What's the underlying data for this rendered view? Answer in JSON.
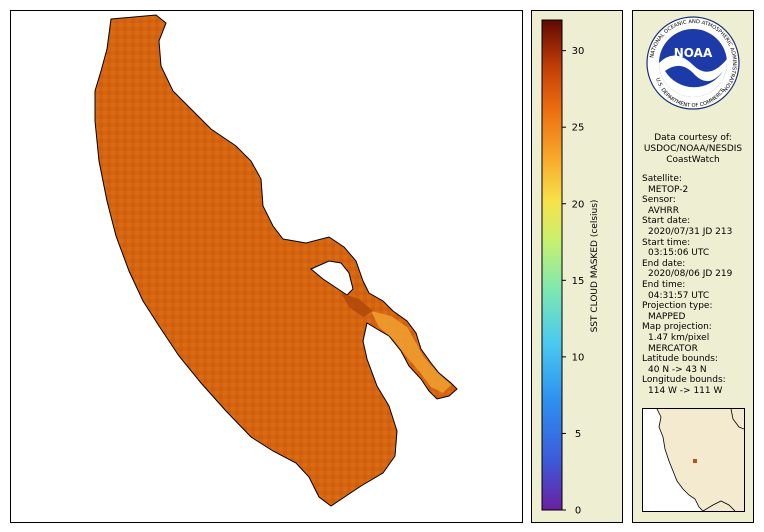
{
  "map": {
    "fill_color": "#d9680e",
    "highlight_color": "#f4b33a",
    "outline_color": "#000000"
  },
  "legend": {
    "title": "SST CLOUD MASKED (celsius)",
    "ticks": [
      "30",
      "25",
      "20",
      "15",
      "10",
      "5",
      "0"
    ],
    "min": 0,
    "max": 32,
    "colormap": [
      "#6a1fa0",
      "#3d5ad8",
      "#2e8ef0",
      "#49c9f0",
      "#7fe8b0",
      "#c8f070",
      "#f8e24a",
      "#f8a72a",
      "#ea6c10",
      "#c54008",
      "#8a1f05",
      "#5c0a02"
    ]
  },
  "logo": {
    "text": "NOAA",
    "ring_text": "NATIONAL OCEANIC AND ATMOSPHERIC ADMINISTRATION",
    "bottom_text": "U.S. DEPARTMENT OF COMMERCE",
    "icon": "noaa-seal-icon"
  },
  "credit": {
    "line1": "Data courtesy of:",
    "line2": "USDOC/NOAA/NESDIS",
    "line3": "CoastWatch"
  },
  "metadata": [
    {
      "label": "Satellite:",
      "value": "METOP-2"
    },
    {
      "label": "Sensor:",
      "value": "AVHRR"
    },
    {
      "label": "Start date:",
      "value": "2020/07/31 JD 213"
    },
    {
      "label": "Start time:",
      "value": "03:15:06 UTC"
    },
    {
      "label": "End date:",
      "value": "2020/08/06 JD 219"
    },
    {
      "label": "End time:",
      "value": "04:31:57 UTC"
    },
    {
      "label": "Projection type:",
      "value": "MAPPED"
    },
    {
      "label": "Map projection:",
      "value": "1.47 km/pixel\nMERCATOR"
    },
    {
      "label": "Latitude bounds:",
      "value": "40 N -> 43 N"
    },
    {
      "label": "Longitude bounds:",
      "value": "114 W -> 111 W"
    }
  ],
  "inset": {
    "icon": "locator-map-icon",
    "marker_color": "#c0501a"
  }
}
